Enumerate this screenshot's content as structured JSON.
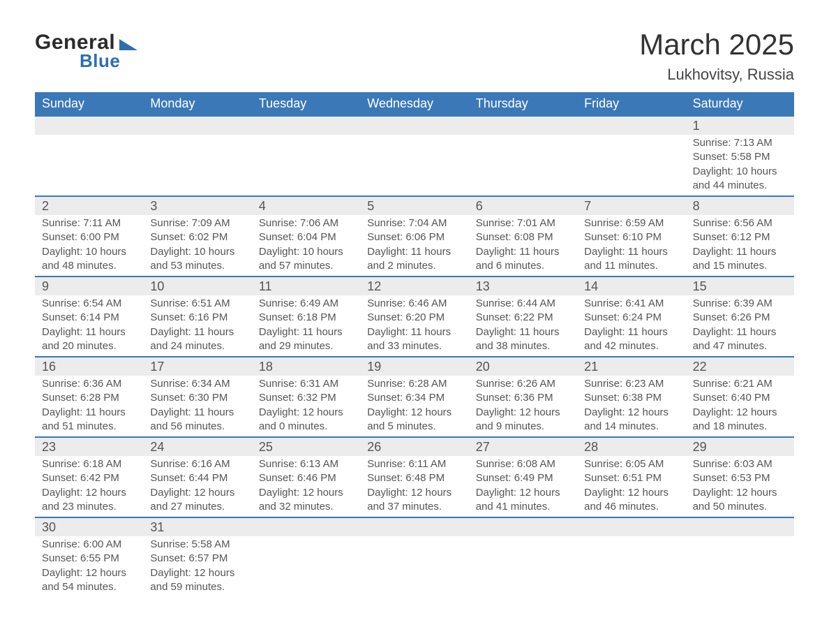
{
  "logo": {
    "word1": "General",
    "word2": "Blue"
  },
  "title": "March 2025",
  "location": "Lukhovitsy, Russia",
  "colors": {
    "header_bg": "#3b78b8",
    "header_text": "#ffffff",
    "band_bg": "#ececec",
    "band_border": "#3b78b8",
    "text": "#555555",
    "logo_accent": "#2f6db2"
  },
  "weekdays": [
    "Sunday",
    "Monday",
    "Tuesday",
    "Wednesday",
    "Thursday",
    "Friday",
    "Saturday"
  ],
  "labels": {
    "sunrise": "Sunrise:",
    "sunset": "Sunset:",
    "daylight": "Daylight:"
  },
  "weeks": [
    [
      null,
      null,
      null,
      null,
      null,
      null,
      {
        "n": "1",
        "sr": "7:13 AM",
        "ss": "5:58 PM",
        "dl": "10 hours and 44 minutes."
      }
    ],
    [
      {
        "n": "2",
        "sr": "7:11 AM",
        "ss": "6:00 PM",
        "dl": "10 hours and 48 minutes."
      },
      {
        "n": "3",
        "sr": "7:09 AM",
        "ss": "6:02 PM",
        "dl": "10 hours and 53 minutes."
      },
      {
        "n": "4",
        "sr": "7:06 AM",
        "ss": "6:04 PM",
        "dl": "10 hours and 57 minutes."
      },
      {
        "n": "5",
        "sr": "7:04 AM",
        "ss": "6:06 PM",
        "dl": "11 hours and 2 minutes."
      },
      {
        "n": "6",
        "sr": "7:01 AM",
        "ss": "6:08 PM",
        "dl": "11 hours and 6 minutes."
      },
      {
        "n": "7",
        "sr": "6:59 AM",
        "ss": "6:10 PM",
        "dl": "11 hours and 11 minutes."
      },
      {
        "n": "8",
        "sr": "6:56 AM",
        "ss": "6:12 PM",
        "dl": "11 hours and 15 minutes."
      }
    ],
    [
      {
        "n": "9",
        "sr": "6:54 AM",
        "ss": "6:14 PM",
        "dl": "11 hours and 20 minutes."
      },
      {
        "n": "10",
        "sr": "6:51 AM",
        "ss": "6:16 PM",
        "dl": "11 hours and 24 minutes."
      },
      {
        "n": "11",
        "sr": "6:49 AM",
        "ss": "6:18 PM",
        "dl": "11 hours and 29 minutes."
      },
      {
        "n": "12",
        "sr": "6:46 AM",
        "ss": "6:20 PM",
        "dl": "11 hours and 33 minutes."
      },
      {
        "n": "13",
        "sr": "6:44 AM",
        "ss": "6:22 PM",
        "dl": "11 hours and 38 minutes."
      },
      {
        "n": "14",
        "sr": "6:41 AM",
        "ss": "6:24 PM",
        "dl": "11 hours and 42 minutes."
      },
      {
        "n": "15",
        "sr": "6:39 AM",
        "ss": "6:26 PM",
        "dl": "11 hours and 47 minutes."
      }
    ],
    [
      {
        "n": "16",
        "sr": "6:36 AM",
        "ss": "6:28 PM",
        "dl": "11 hours and 51 minutes."
      },
      {
        "n": "17",
        "sr": "6:34 AM",
        "ss": "6:30 PM",
        "dl": "11 hours and 56 minutes."
      },
      {
        "n": "18",
        "sr": "6:31 AM",
        "ss": "6:32 PM",
        "dl": "12 hours and 0 minutes."
      },
      {
        "n": "19",
        "sr": "6:28 AM",
        "ss": "6:34 PM",
        "dl": "12 hours and 5 minutes."
      },
      {
        "n": "20",
        "sr": "6:26 AM",
        "ss": "6:36 PM",
        "dl": "12 hours and 9 minutes."
      },
      {
        "n": "21",
        "sr": "6:23 AM",
        "ss": "6:38 PM",
        "dl": "12 hours and 14 minutes."
      },
      {
        "n": "22",
        "sr": "6:21 AM",
        "ss": "6:40 PM",
        "dl": "12 hours and 18 minutes."
      }
    ],
    [
      {
        "n": "23",
        "sr": "6:18 AM",
        "ss": "6:42 PM",
        "dl": "12 hours and 23 minutes."
      },
      {
        "n": "24",
        "sr": "6:16 AM",
        "ss": "6:44 PM",
        "dl": "12 hours and 27 minutes."
      },
      {
        "n": "25",
        "sr": "6:13 AM",
        "ss": "6:46 PM",
        "dl": "12 hours and 32 minutes."
      },
      {
        "n": "26",
        "sr": "6:11 AM",
        "ss": "6:48 PM",
        "dl": "12 hours and 37 minutes."
      },
      {
        "n": "27",
        "sr": "6:08 AM",
        "ss": "6:49 PM",
        "dl": "12 hours and 41 minutes."
      },
      {
        "n": "28",
        "sr": "6:05 AM",
        "ss": "6:51 PM",
        "dl": "12 hours and 46 minutes."
      },
      {
        "n": "29",
        "sr": "6:03 AM",
        "ss": "6:53 PM",
        "dl": "12 hours and 50 minutes."
      }
    ],
    [
      {
        "n": "30",
        "sr": "6:00 AM",
        "ss": "6:55 PM",
        "dl": "12 hours and 54 minutes."
      },
      {
        "n": "31",
        "sr": "5:58 AM",
        "ss": "6:57 PM",
        "dl": "12 hours and 59 minutes."
      },
      null,
      null,
      null,
      null,
      null
    ]
  ]
}
